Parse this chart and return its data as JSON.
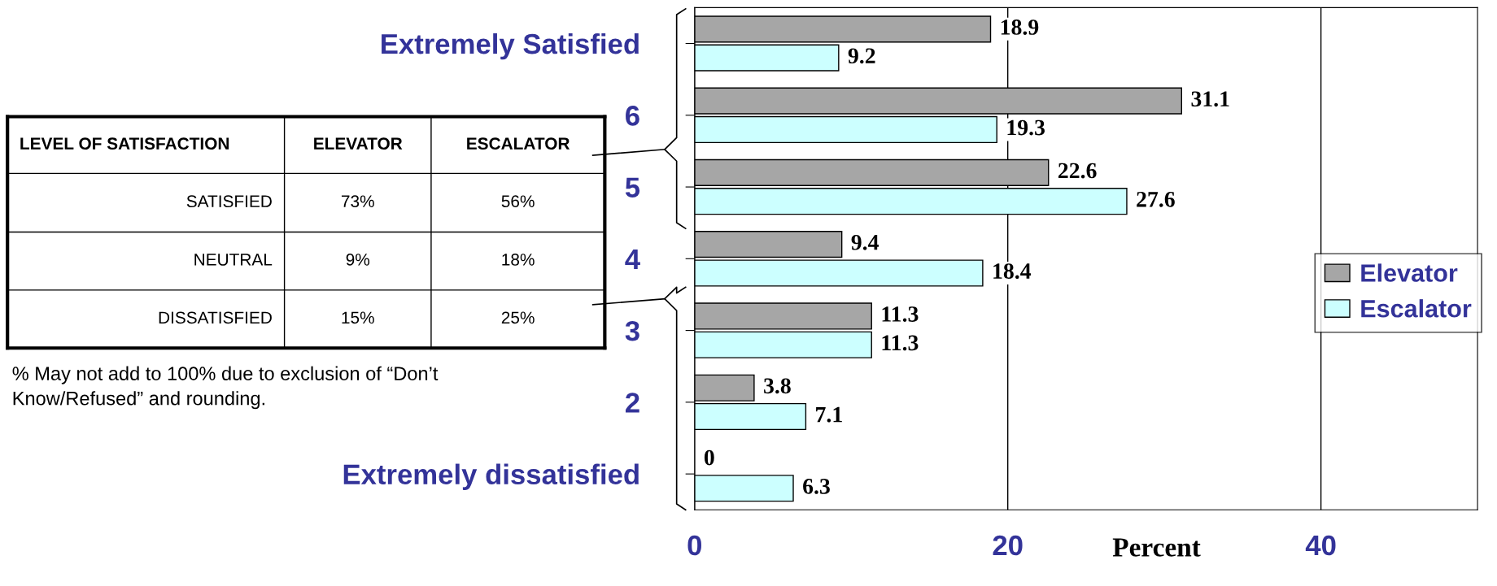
{
  "chart_data": {
    "type": "bar",
    "orientation": "horizontal",
    "xlabel": "Percent",
    "categories": [
      "Extremely Satisfied",
      "6",
      "5",
      "4",
      "3",
      "2",
      "Extremely dissatisfied"
    ],
    "series": [
      {
        "name": "Elevator",
        "color": "#a6a6a6",
        "values": [
          18.9,
          31.1,
          22.6,
          9.4,
          11.3,
          3.8,
          0
        ]
      },
      {
        "name": "Escalator",
        "color": "#ccffff",
        "values": [
          9.2,
          19.3,
          27.6,
          18.4,
          11.3,
          7.1,
          6.3
        ]
      }
    ],
    "xlim": [
      0,
      50
    ],
    "xticks": [
      0,
      20,
      40
    ],
    "grid": "x",
    "legend": "right",
    "data_labels": true,
    "annotations": [
      "LEVEL OF SATISFACTION",
      "ELEVATOR",
      "ESCALATOR",
      "SATISFIED",
      "73%",
      "56%",
      "NEUTRAL",
      "9%",
      "18%",
      "DISSATISFIED",
      "15%",
      "25%",
      "% May not add to 100% due to exclusion of “Don’t\nKnow/Refused” and rounding."
    ]
  }
}
